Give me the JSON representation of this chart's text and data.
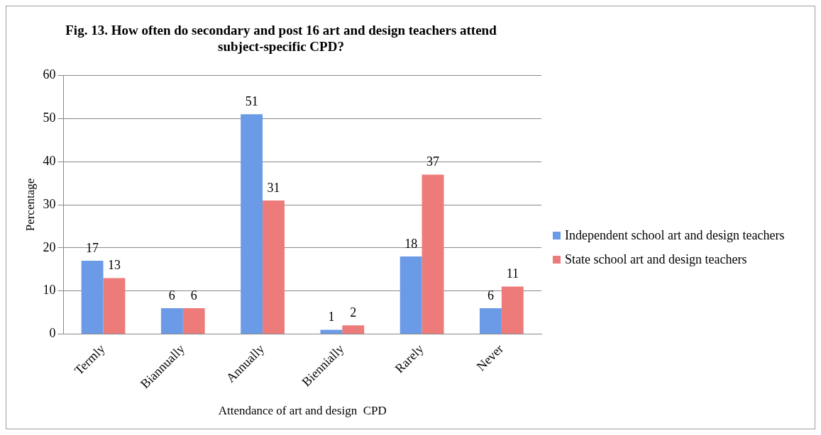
{
  "chart_data": {
    "type": "bar",
    "title": "Fig. 13. How often do secondary and post 16 art and design teachers attend subject-specific CPD?",
    "xlabel": "Attendance of art and design  CPD",
    "ylabel": "Percentage",
    "categories": [
      "Termly",
      "Biannually",
      "Annually",
      "Biennially",
      "Rarely",
      "Never"
    ],
    "series": [
      {
        "name": "Independent school art and design teachers",
        "color": "#6b9be6",
        "values": [
          17,
          6,
          51,
          1,
          18,
          6
        ]
      },
      {
        "name": "State school art and design teachers",
        "color": "#ec7b79",
        "values": [
          13,
          6,
          31,
          2,
          37,
          11
        ]
      }
    ],
    "ylim": [
      0,
      60
    ],
    "yticks": [
      0,
      10,
      20,
      30,
      40,
      50,
      60
    ],
    "grid": "y",
    "legend": "right",
    "data_labels": true
  }
}
